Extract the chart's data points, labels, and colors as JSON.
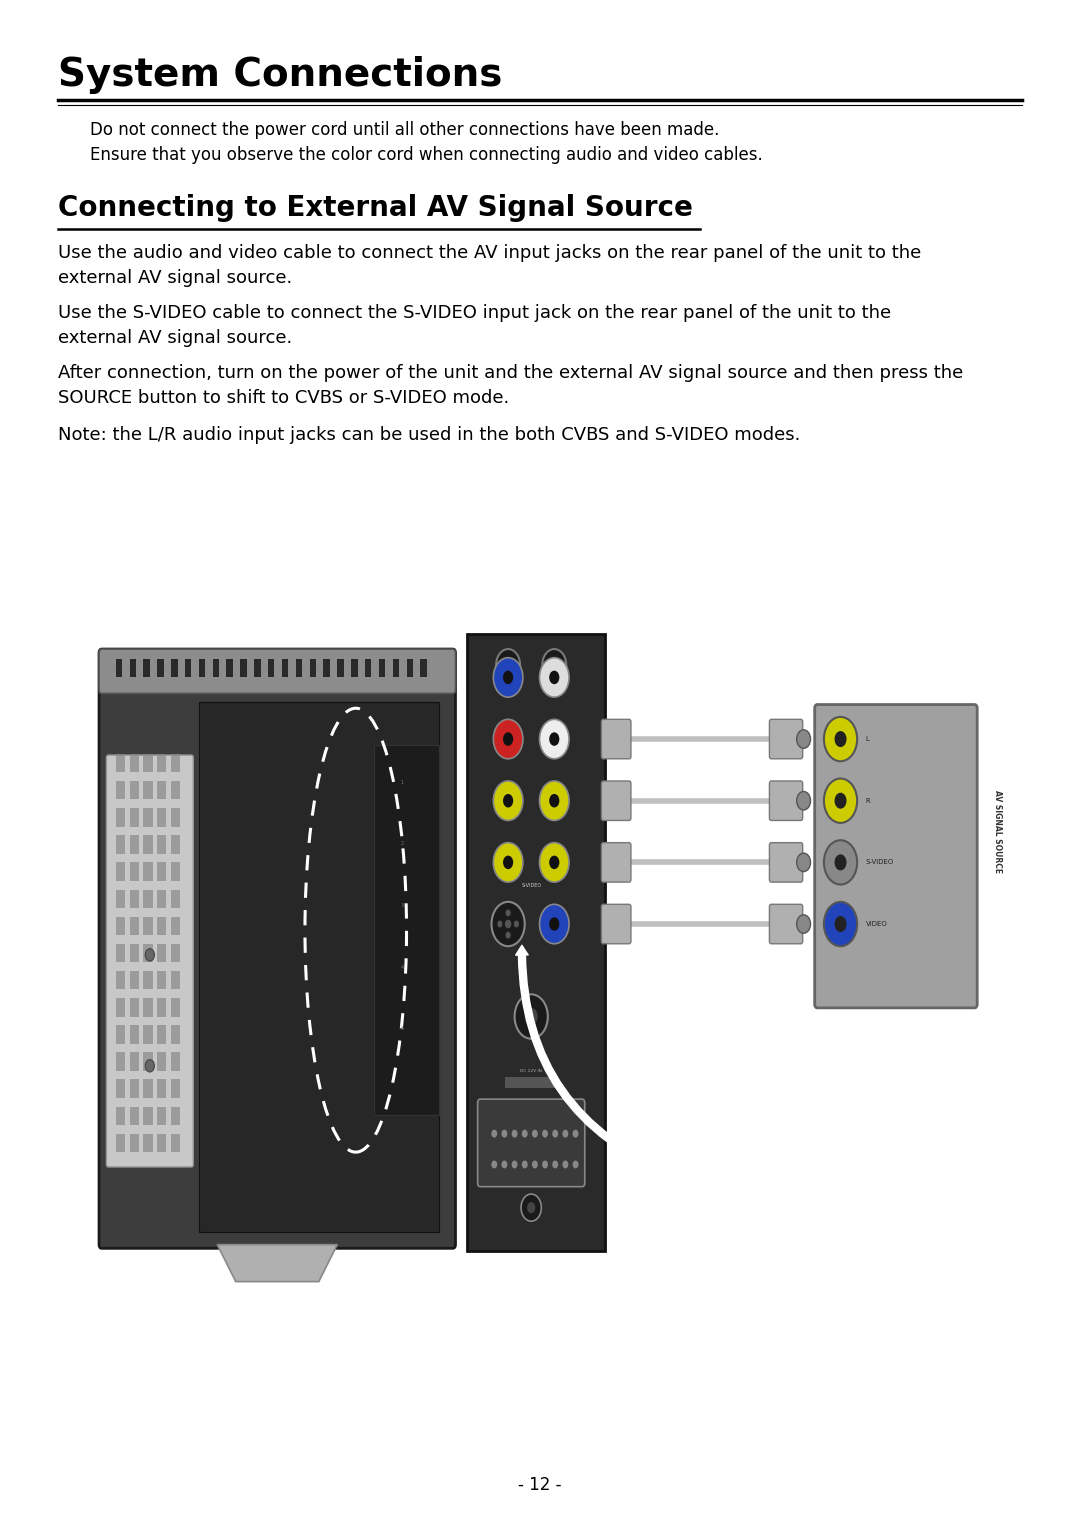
{
  "title": "System Connections",
  "sub1": "Do not connect the power cord until all other connections have been made.",
  "sub2": "Ensure that you observe the color cord when connecting audio and video cables.",
  "section_title": "Connecting to External AV Signal Source",
  "p1a": "Use the audio and video cable to connect the AV input jacks on the rear panel of the unit to the",
  "p1b": "external AV signal source.",
  "p2a": "Use the S-VIDEO cable to connect the S-VIDEO input jack on the rear panel of the unit to the",
  "p2b": "external AV signal source.",
  "p3a": "After connection, turn on the power of the unit and the external AV signal source and then press the",
  "p3b": "SOURCE button to shift to CVBS or S-VIDEO mode.",
  "p4": "Note: the L/R audio input jacks can be used in the both CVBS and S-VIDEO modes.",
  "page_num": "- 12 -",
  "bg": "#ffffff",
  "fg": "#000000"
}
